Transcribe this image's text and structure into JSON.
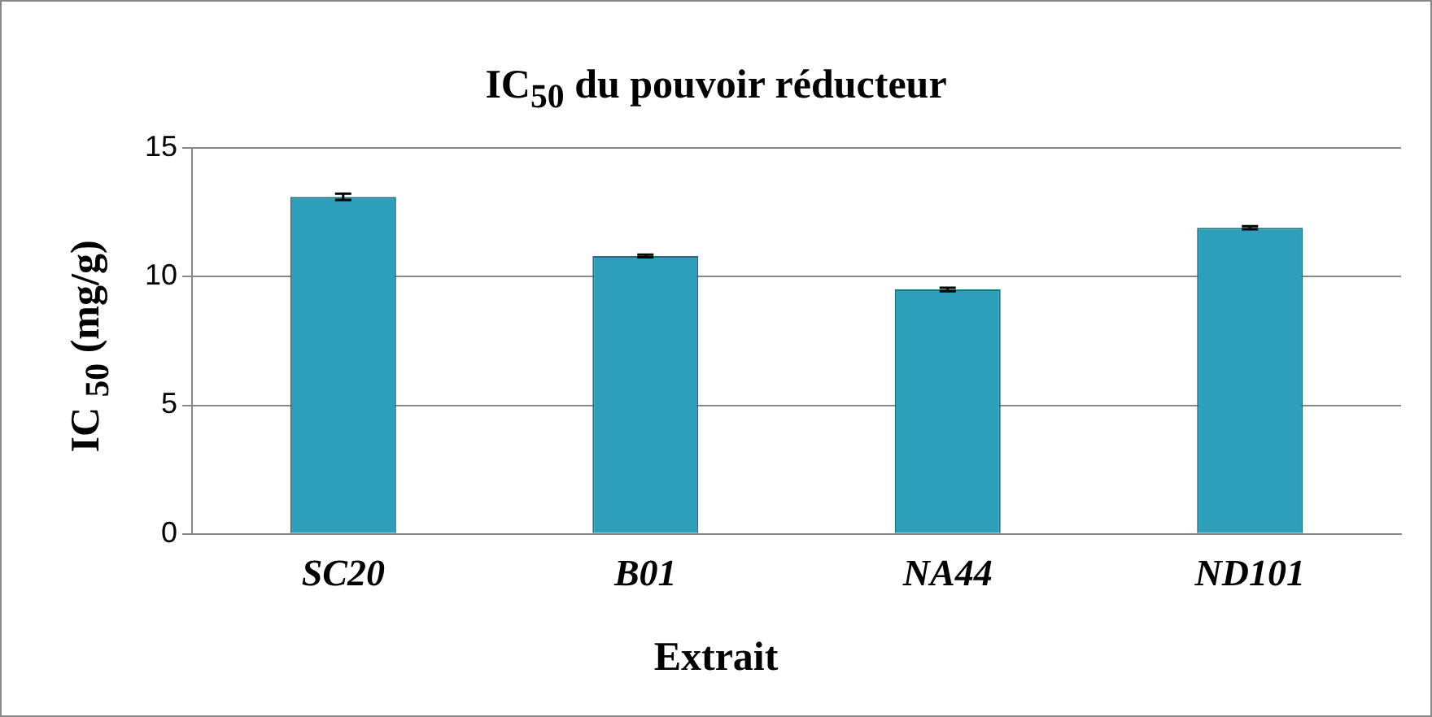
{
  "chart_data": {
    "type": "bar",
    "title": "IC$_{50}$ du pouvoir réducteur",
    "xlabel": "Extrait",
    "ylabel": "IC $_{50}$ (mg/g)",
    "categories": [
      "SC20",
      "B01",
      "NA44",
      "ND101"
    ],
    "values": [
      13.1,
      10.8,
      9.5,
      11.9
    ],
    "errors": [
      0.12,
      0.05,
      0.07,
      0.06
    ],
    "color": "#2e9fba",
    "ylim": [
      0,
      15
    ],
    "yticks": [
      0,
      5,
      10,
      15
    ],
    "grid": "y",
    "legend": false
  }
}
